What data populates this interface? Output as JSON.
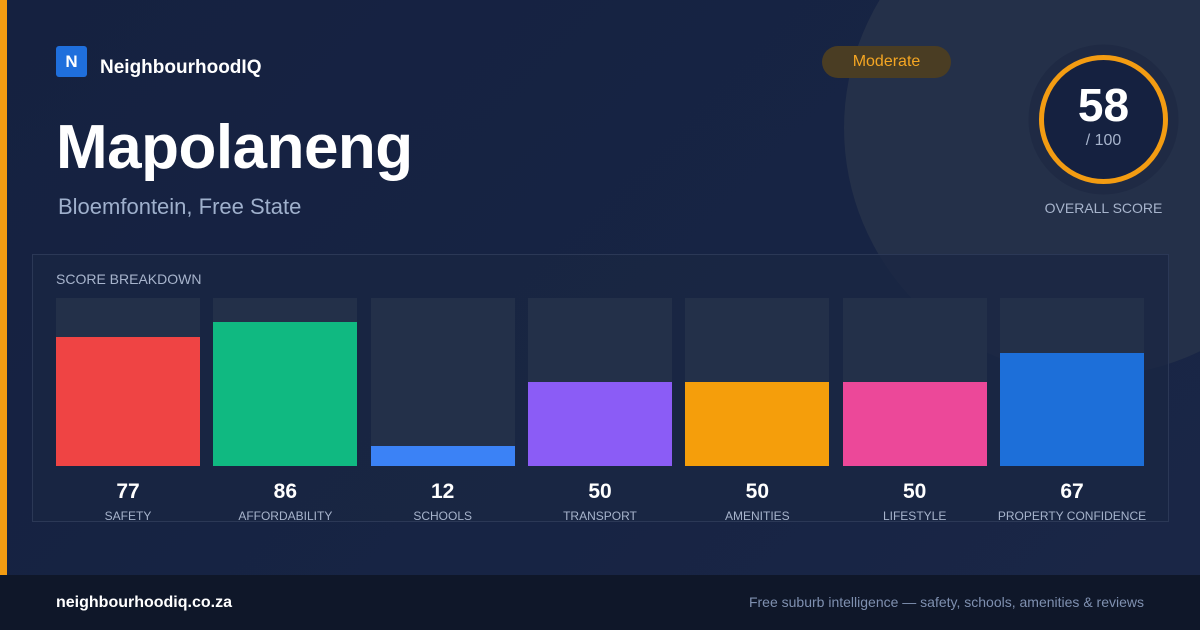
{
  "brand": {
    "logo_letter": "N",
    "name": "NeighbourhoodIQ"
  },
  "suburb": {
    "name": "Mapolaneng",
    "location": "Bloemfontein, Free State"
  },
  "rating": {
    "label": "Moderate",
    "color": "#f5a623"
  },
  "score": {
    "value": "58",
    "max": "/ 100",
    "fraction": 0.58,
    "caption": "OVERALL SCORE",
    "ring_color": "#f39c12"
  },
  "breakdown": {
    "title": "SCORE BREAKDOWN",
    "chart_data": {
      "type": "bar",
      "ylim": [
        0,
        100
      ],
      "categories": [
        "SAFETY",
        "AFFORDABILITY",
        "SCHOOLS",
        "TRANSPORT",
        "AMENITIES",
        "LIFESTYLE",
        "PROPERTY CONFIDENCE"
      ],
      "values": [
        77,
        86,
        12,
        50,
        50,
        50,
        67
      ],
      "colors": [
        "#ef4444",
        "#10b981",
        "#3b82f6",
        "#8b5cf6",
        "#f59e0b",
        "#ec4899",
        "#1d6fd9"
      ]
    }
  },
  "footer": {
    "url": "neighbourhoodiq.co.za",
    "tagline": "Free suburb intelligence — safety, schools, amenities & reviews"
  }
}
